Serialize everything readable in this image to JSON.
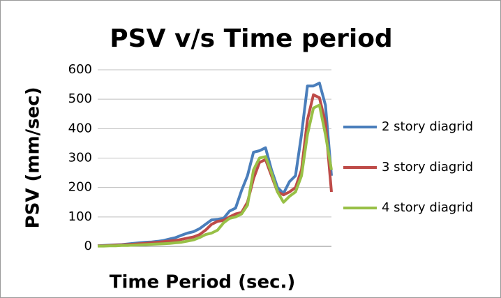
{
  "chart_data": {
    "type": "line",
    "title": "PSV v/s Time period",
    "x_label": "Time Period (sec.)",
    "y_label": "PSV (mm/sec)",
    "categories": [
      null,
      null,
      null,
      null,
      null,
      null,
      null,
      null,
      null,
      null,
      null,
      null,
      null,
      null,
      null,
      null,
      null,
      null,
      null,
      null,
      null,
      null,
      null,
      null,
      null,
      null,
      null,
      null,
      null,
      null,
      null,
      null,
      null,
      null,
      null,
      null,
      null,
      null,
      null,
      null
    ],
    "series": [
      {
        "name": "2 story diagrid",
        "color": "#4a7ebb",
        "values": [
          2,
          3,
          4,
          5,
          6,
          8,
          10,
          12,
          14,
          15,
          17,
          20,
          25,
          30,
          38,
          45,
          50,
          60,
          75,
          90,
          92,
          95,
          120,
          130,
          190,
          240,
          320,
          325,
          335,
          260,
          200,
          180,
          220,
          240,
          380,
          545,
          545,
          555,
          480,
          240
        ]
      },
      {
        "name": "3 story diagrid",
        "color": "#be4b48",
        "values": [
          2,
          2,
          3,
          4,
          5,
          6,
          7,
          9,
          10,
          12,
          14,
          16,
          18,
          20,
          24,
          28,
          32,
          40,
          55,
          75,
          85,
          88,
          100,
          110,
          115,
          150,
          230,
          285,
          295,
          240,
          185,
          175,
          185,
          200,
          260,
          430,
          515,
          505,
          420,
          185
        ]
      },
      {
        "name": "4 story diagrid",
        "color": "#98c046",
        "values": [
          1,
          1,
          2,
          2,
          3,
          3,
          4,
          5,
          6,
          7,
          8,
          9,
          10,
          12,
          14,
          18,
          22,
          30,
          40,
          45,
          55,
          80,
          95,
          100,
          110,
          140,
          260,
          300,
          305,
          250,
          185,
          150,
          170,
          185,
          240,
          380,
          470,
          480,
          380,
          260
        ]
      }
    ],
    "ylim": [
      0,
      600
    ],
    "yticks": [
      0,
      100,
      200,
      300,
      400,
      500,
      600
    ],
    "grid": true,
    "legend": "right"
  }
}
